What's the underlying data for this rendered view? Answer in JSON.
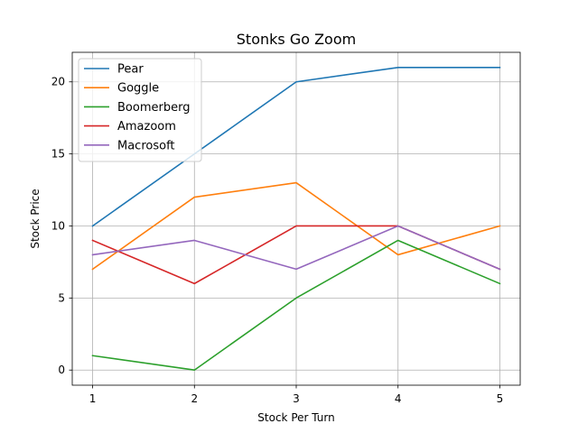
{
  "chart_data": {
    "type": "line",
    "title": "Stonks Go Zoom",
    "xlabel": "Stock Per Turn",
    "ylabel": "Stock Price",
    "x": [
      1,
      2,
      3,
      4,
      5
    ],
    "xlim": [
      0.8,
      5.2
    ],
    "ylim": [
      -1.05,
      22.05
    ],
    "xticks": [
      1,
      2,
      3,
      4,
      5
    ],
    "yticks": [
      0,
      5,
      10,
      15,
      20
    ],
    "grid": true,
    "legend_position": "top-left",
    "series": [
      {
        "name": "Pear",
        "color": "#1f77b4",
        "values": [
          10,
          15,
          20,
          21,
          21
        ]
      },
      {
        "name": "Goggle",
        "color": "#ff7f0e",
        "values": [
          7,
          12,
          13,
          8,
          10
        ]
      },
      {
        "name": "Boomerberg",
        "color": "#2ca02c",
        "values": [
          1,
          0,
          5,
          9,
          6
        ]
      },
      {
        "name": "Amazoom",
        "color": "#d62728",
        "values": [
          9,
          6,
          10,
          10,
          7
        ]
      },
      {
        "name": "Macrosoft",
        "color": "#9467bd",
        "values": [
          8,
          9,
          7,
          10,
          7
        ]
      }
    ]
  }
}
